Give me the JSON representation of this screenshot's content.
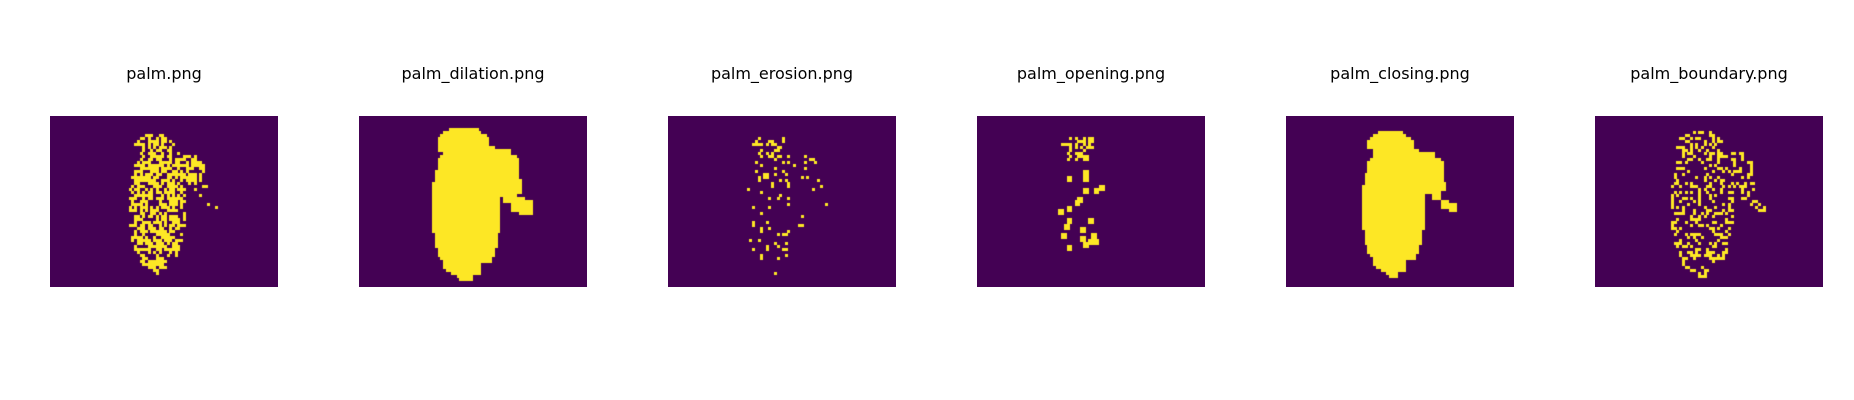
{
  "colors": {
    "background": "#440154",
    "foreground": "#fde725"
  },
  "panels": [
    {
      "title": "palm.png",
      "variant": "original"
    },
    {
      "title": "palm_dilation.png",
      "variant": "dilation"
    },
    {
      "title": "palm_erosion.png",
      "variant": "erosion"
    },
    {
      "title": "palm_opening.png",
      "variant": "opening"
    },
    {
      "title": "palm_closing.png",
      "variant": "closing"
    },
    {
      "title": "palm_boundary.png",
      "variant": "boundary"
    }
  ]
}
